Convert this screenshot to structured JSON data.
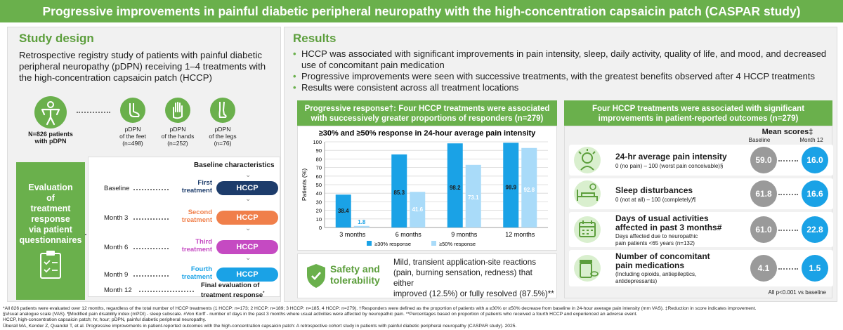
{
  "title": "Progressive improvements in painful diabetic peripheral neuropathy with the high-concentration capsaicin patch (CASPAR study)",
  "colors": {
    "green": "#6ab04c",
    "blue": "#1aa2e6",
    "light_blue": "#a9dbf9",
    "orange": "#f07f4a",
    "magenta": "#c54ac2",
    "navy": "#1d3c6b",
    "gray": "#9a9a9a"
  },
  "study_design": {
    "heading": "Study design",
    "text": "Retrospective registry study of patients with painful diabetic peripheral neuropathy (pDPN) receiving 1–4 treatments with the high-concentration capsaicin patch (HCCP)",
    "patients": {
      "line1": "N=826 patients",
      "line2": "with pDPN",
      "icon": "person-icon"
    },
    "groups": [
      {
        "line1": "pDPN",
        "line2": "of the feet",
        "line3": "(n=498)",
        "icon": "foot-icon"
      },
      {
        "line1": "pDPN",
        "line2": "of the hands",
        "line3": "(n=252)",
        "icon": "hand-icon"
      },
      {
        "line1": "pDPN",
        "line2": "of the legs",
        "line3": "(n=76)",
        "icon": "leg-icon"
      }
    ],
    "evaluation": "Evaluation\nof\ntreatment\nresponse\nvia patient\nquestionnaires",
    "baseline_characteristics": "Baseline characteristics",
    "timeline": [
      {
        "time": "Baseline",
        "treatment": "First\ntreatment",
        "pill": "HCCP",
        "color": "#1d3c6b"
      },
      {
        "time": "Month 3",
        "treatment": "Second\ntreatment",
        "pill": "HCCP",
        "color": "#f07f4a"
      },
      {
        "time": "Month 6",
        "treatment": "Third\ntreatment",
        "pill": "HCCP",
        "color": "#c54ac2"
      },
      {
        "time": "Month 9",
        "treatment": "Fourth\ntreatment",
        "pill": "HCCP",
        "color": "#1aa2e6"
      }
    ],
    "final": {
      "time": "Month 12",
      "line1": "Final evaluation of",
      "line2": "treatment response",
      "sup": "*"
    }
  },
  "results": {
    "heading": "Results",
    "bullets": [
      "HCCP was associated with significant improvements in pain intensity, sleep, daily activity, quality of life, and mood, and decreased use of concomitant pain medication",
      "Progressive improvements were seen with successive treatments, with the greatest benefits observed after 4 HCCP treatments",
      "Results were consistent across all treatment locations"
    ],
    "response_box": {
      "line1": "Progressive response†: Four HCCP treatments were associated",
      "line2": "with successively greater proportions of responders (n=279)"
    },
    "outcomes_box": {
      "line1": "Four HCCP treatments were associated with significant",
      "line2": "improvements in patient-reported outcomes (n=279)"
    },
    "mean_scores": "Mean scores‡",
    "col_baseline": "Baseline",
    "col_month12": "Month 12",
    "outcomes": [
      {
        "title": "24-hr average pain intensity",
        "title2": "",
        "sub": "0 (no pain) – 100 (worst pain conceivable)§",
        "sub2": "",
        "baseline": "59.0",
        "month12": "16.0",
        "icon": "head-pain-icon"
      },
      {
        "title": "Sleep disturbances",
        "title2": "",
        "sub": "0 (not at all) – 100 (completely)¶",
        "sub2": "",
        "baseline": "61.8",
        "month12": "16.6",
        "icon": "bed-icon"
      },
      {
        "title": "Days of usual activities",
        "title2": "affected in past 3 months#",
        "sub": "Days affected due to neuropathic",
        "sub2": "pain patients <65 years (n=132)",
        "baseline": "61.0",
        "month12": "22.8",
        "icon": "calendar-icon"
      },
      {
        "title": "Number of concomitant",
        "title2": "pain medications",
        "sub": "(Including opioids, antiepileptics,",
        "sub2": "antidepressants)",
        "baseline": "4.1",
        "month12": "1.5",
        "icon": "medication-icon"
      }
    ],
    "pvalue": "All p<0.001 vs baseline",
    "safety": {
      "heading1": "Safety and",
      "heading2": "tolerability",
      "text1": "Mild, transient application-site reactions",
      "text2": "(pain, burning sensation, redness) that either",
      "text3": "improved (12.5%) or fully resolved (87.5%)**",
      "icon": "shield-check-icon"
    }
  },
  "chart_data": {
    "type": "bar",
    "title": "≥30% and ≥50% response in 24-hour average pain intensity",
    "ylabel": "Patients (%)",
    "xlabel": "",
    "ylim": [
      0,
      100
    ],
    "yticks": [
      0,
      10,
      20,
      30,
      40,
      50,
      60,
      70,
      80,
      90,
      100
    ],
    "categories": [
      "3 months",
      "6 months",
      "9 months",
      "12 months"
    ],
    "series": [
      {
        "name": "≥30% response",
        "values": [
          38.4,
          85.3,
          98.2,
          98.9
        ],
        "color": "#1aa2e6"
      },
      {
        "name": "≥50% response",
        "values": [
          1.8,
          41.6,
          73.1,
          92.8
        ],
        "color": "#a9dbf9"
      }
    ],
    "grid": true,
    "legend": "bottom"
  },
  "footnotes": [
    "*All 826 patients were evaluated over 12 months, regardless of the total number of HCCP treatments (1 HCCP: n=173; 2 HCCP: n=189; 3 HCCP: n=185, 4 HCCP: n=279). †Responders were defined as the proportion of patients with a ≥30% or ≥50% decrease from baseline in 24-hour average pain intensity (mm VAS). ‡Reduction in score indicates improvement.",
    "§Visual analogue scale (VAS). ¶Modified pain disability index (mPDI) - sleep subscale. #Von Korff - number of days in the past 3 months where usual activities were affected by neuropathic pain. **Percentages based on proportion of patients who received a fourth HCCP and experienced an adverse event.",
    "HCCP, high-concentration capsaicin patch; hr, hour; pDPN, painful diabetic peripheral neuropathy.",
    "Überall MA, Kender Z, Quandel T, et al. Progressive improvements in patient-reported outcomes with the high-concentration capsaicin patch: A retrospective cohort study in patients with painful diabetic peripheral neuropathy (CASPAR study). 2025."
  ]
}
